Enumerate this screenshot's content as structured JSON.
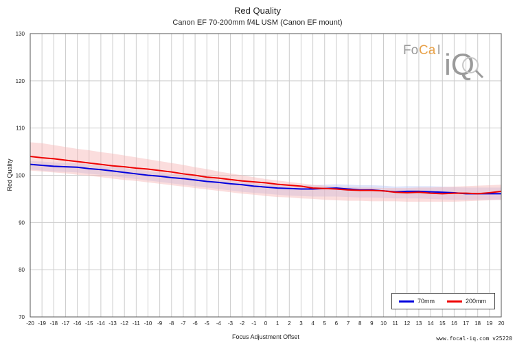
{
  "chart_data": {
    "type": "line",
    "title": "Red Quality",
    "subtitle": "Canon EF 70-200mm f/4L USM (Canon EF mount)",
    "xlabel": "Focus Adjustment Offset",
    "ylabel": "Red Quality",
    "xlim": [
      -20,
      20
    ],
    "ylim": [
      70,
      130
    ],
    "x_ticks": [
      -20,
      -19,
      -18,
      -17,
      -16,
      -15,
      -14,
      -13,
      -12,
      -11,
      -10,
      -9,
      -8,
      -7,
      -6,
      -5,
      -4,
      -3,
      -2,
      -1,
      0,
      1,
      2,
      3,
      4,
      5,
      6,
      7,
      8,
      9,
      10,
      11,
      12,
      13,
      14,
      15,
      16,
      17,
      18,
      19,
      20
    ],
    "y_ticks": [
      70,
      80,
      90,
      100,
      110,
      120,
      130
    ],
    "grid": true,
    "legend_position": "bottom-right",
    "x": [
      -20,
      -19,
      -18,
      -17,
      -16,
      -15,
      -14,
      -13,
      -12,
      -11,
      -10,
      -9,
      -8,
      -7,
      -6,
      -5,
      -4,
      -3,
      -2,
      -1,
      0,
      1,
      2,
      3,
      4,
      5,
      6,
      7,
      8,
      9,
      10,
      11,
      12,
      13,
      14,
      15,
      16,
      17,
      18,
      19,
      20
    ],
    "series": [
      {
        "name": "70mm",
        "color": "#0000dd",
        "band_color": "#b9c3f5",
        "values": [
          102.3,
          102.1,
          101.9,
          101.8,
          101.7,
          101.4,
          101.2,
          100.9,
          100.6,
          100.3,
          100.0,
          99.8,
          99.5,
          99.3,
          99.0,
          98.7,
          98.5,
          98.2,
          98.0,
          97.7,
          97.5,
          97.3,
          97.2,
          97.1,
          97.1,
          97.2,
          97.3,
          97.1,
          96.9,
          96.9,
          96.7,
          96.5,
          96.6,
          96.6,
          96.5,
          96.4,
          96.3,
          96.1,
          96.1,
          96.1,
          96.1
        ],
        "upper": [
          103.0,
          102.9,
          102.7,
          102.6,
          102.5,
          102.3,
          102.0,
          101.8,
          101.5,
          101.2,
          100.9,
          100.6,
          100.3,
          100.0,
          99.7,
          99.4,
          99.1,
          98.8,
          98.6,
          98.3,
          98.1,
          98.0,
          97.9,
          97.9,
          97.9,
          98.0,
          98.1,
          98.0,
          97.9,
          97.9,
          97.8,
          97.6,
          97.7,
          97.7,
          97.7,
          97.6,
          97.5,
          97.4,
          97.4,
          97.4,
          97.4
        ],
        "lower": [
          101.2,
          101.0,
          100.8,
          100.7,
          100.6,
          100.3,
          100.1,
          99.8,
          99.5,
          99.2,
          98.9,
          98.6,
          98.3,
          98.0,
          97.7,
          97.4,
          97.1,
          96.8,
          96.5,
          96.3,
          96.1,
          95.9,
          95.7,
          95.6,
          95.5,
          95.5,
          95.5,
          95.4,
          95.3,
          95.3,
          95.2,
          95.1,
          95.1,
          95.1,
          95.0,
          94.9,
          94.8,
          94.8,
          94.8,
          94.8,
          94.8
        ]
      },
      {
        "name": "200mm",
        "color": "#ee0000",
        "band_color": "#f7b4b4",
        "values": [
          104.0,
          103.7,
          103.5,
          103.2,
          102.9,
          102.6,
          102.3,
          102.0,
          101.8,
          101.5,
          101.3,
          101.0,
          100.7,
          100.3,
          100.0,
          99.6,
          99.4,
          99.1,
          98.8,
          98.6,
          98.4,
          98.1,
          97.9,
          97.7,
          97.3,
          97.2,
          97.1,
          96.9,
          96.8,
          96.8,
          96.7,
          96.4,
          96.3,
          96.4,
          96.2,
          96.1,
          96.2,
          96.2,
          96.1,
          96.3,
          96.6
        ],
        "upper": [
          107.0,
          106.8,
          106.4,
          106.0,
          105.6,
          105.3,
          104.9,
          104.6,
          104.2,
          103.8,
          103.4,
          103.0,
          102.6,
          102.2,
          101.7,
          101.3,
          100.8,
          100.4,
          100.0,
          99.6,
          99.2,
          98.9,
          98.6,
          98.3,
          98.0,
          97.8,
          97.6,
          97.5,
          97.4,
          97.4,
          97.3,
          97.3,
          97.3,
          97.4,
          97.4,
          97.5,
          97.6,
          97.7,
          97.8,
          97.9,
          98.0
        ],
        "lower": [
          101.0,
          100.8,
          100.6,
          100.4,
          100.1,
          99.9,
          99.6,
          99.3,
          99.0,
          98.8,
          98.5,
          98.2,
          97.9,
          97.6,
          97.3,
          97.0,
          96.7,
          96.4,
          96.1,
          95.9,
          95.6,
          95.4,
          95.3,
          95.1,
          95.0,
          94.8,
          94.7,
          94.6,
          94.6,
          94.5,
          94.5,
          94.5,
          94.4,
          94.4,
          94.4,
          94.4,
          94.4,
          94.5,
          94.6,
          94.7,
          94.8
        ]
      }
    ]
  },
  "watermark": {
    "logo_text_left": "Fo",
    "logo_text_ca": "Ca",
    "logo_text_l": "l",
    "logo_text_iq": "iQ",
    "icon": "magnifier-icon"
  },
  "footer": {
    "credit": "www.focal-iq.com  v25220"
  },
  "colors": {
    "grid": "#cccccc",
    "axis": "#555555",
    "text": "#222222",
    "logo_gray": "#9a9a9a",
    "logo_orange": "#e8a24a"
  }
}
